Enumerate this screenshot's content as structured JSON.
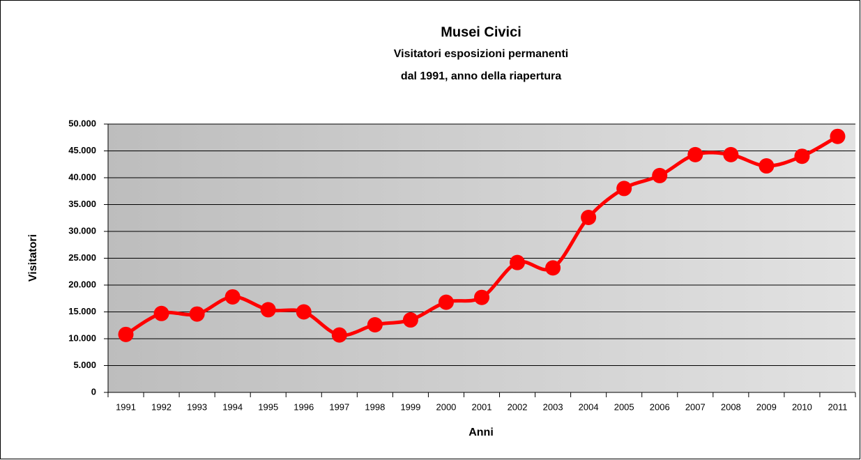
{
  "chart_data": {
    "type": "line",
    "title": "Musei Civici",
    "subtitle": [
      "Visitatori esposizioni permanenti",
      "dal 1991, anno della riapertura"
    ],
    "x_label": "Anni",
    "y_label": "Visitatori",
    "categories": [
      "1991",
      "1992",
      "1993",
      "1994",
      "1995",
      "1996",
      "1997",
      "1998",
      "1999",
      "2000",
      "2001",
      "2002",
      "2003",
      "2004",
      "2005",
      "2006",
      "2007",
      "2008",
      "2009",
      "2010",
      "2011"
    ],
    "values": [
      10800,
      14700,
      14600,
      17800,
      15400,
      15000,
      10700,
      12600,
      13500,
      16800,
      17700,
      24200,
      23200,
      32600,
      38000,
      40400,
      44300,
      44300,
      42200,
      44000,
      47700
    ],
    "color": "#ff0000",
    "ylim": [
      0,
      50000
    ],
    "yticks": [
      0,
      {
        "value": 5000,
        "label": "5.000"
      },
      {
        "value": 10000,
        "label": "10.000"
      },
      {
        "value": 15000,
        "label": "15.000"
      },
      {
        "value": 20000,
        "label": "20.000"
      },
      {
        "value": 25000,
        "label": "25.000"
      },
      {
        "value": 30000,
        "label": "30.000"
      },
      {
        "value": 35000,
        "label": "35.000"
      },
      {
        "value": 40000,
        "label": "40.000"
      },
      {
        "value": 45000,
        "label": "45.000"
      },
      {
        "value": 50000,
        "label": "50.000"
      }
    ],
    "grid": true,
    "smooth": true
  }
}
